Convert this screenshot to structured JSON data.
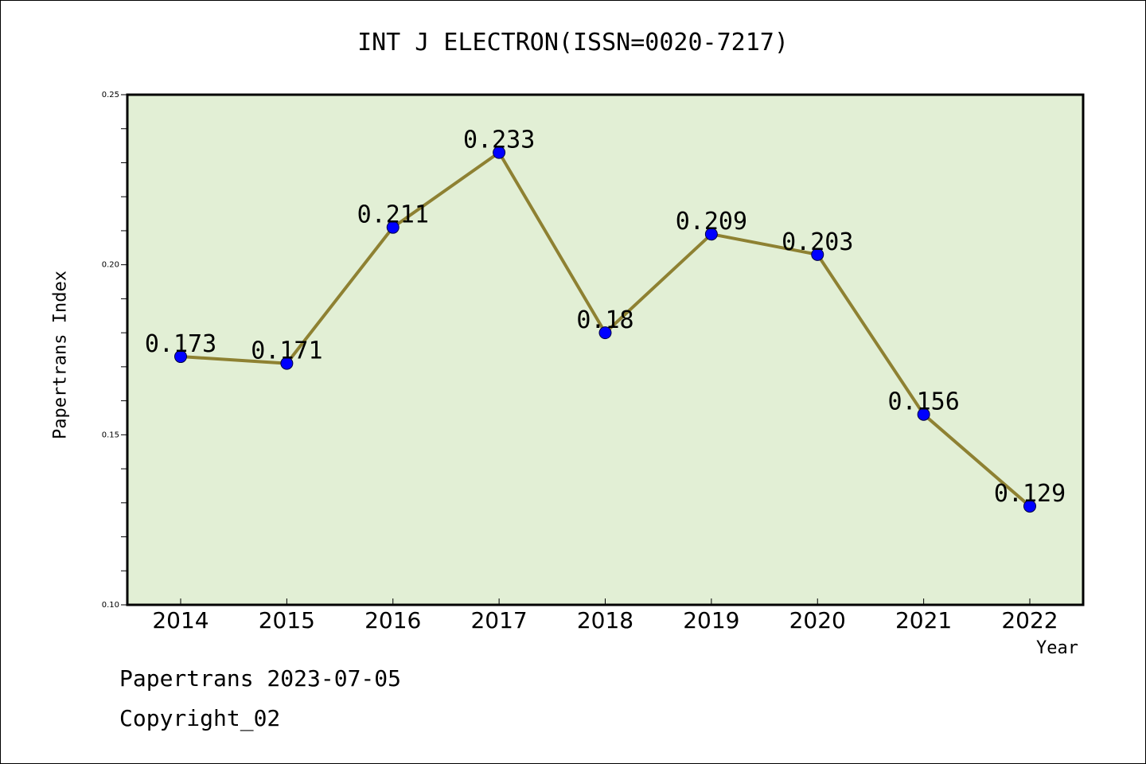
{
  "chart_data": {
    "type": "line",
    "title": "INT J ELECTRON(ISSN=0020-7217)",
    "xlabel": "Year",
    "ylabel": "Papertrans Index",
    "categories": [
      "2014",
      "2015",
      "2016",
      "2017",
      "2018",
      "2019",
      "2020",
      "2021",
      "2022"
    ],
    "series": [
      {
        "values": [
          0.173,
          0.171,
          0.211,
          0.233,
          0.18,
          0.209,
          0.203,
          0.156,
          0.129
        ],
        "data_labels": [
          "0.173",
          "0.171",
          "0.211",
          "0.233",
          "0.18",
          "0.209",
          "0.203",
          "0.156",
          "0.129"
        ]
      }
    ],
    "ylim": [
      0.1,
      0.25
    ],
    "yticks": [
      "0.10",
      "0.15",
      "0.20",
      "0.25"
    ],
    "colors": {
      "plot_background": "#e2efd5",
      "line": "#8e8132",
      "marker": "#0000ff"
    },
    "grid": false
  },
  "footer": {
    "line1": "Papertrans 2023-07-05",
    "line2": "Copyright_02"
  }
}
